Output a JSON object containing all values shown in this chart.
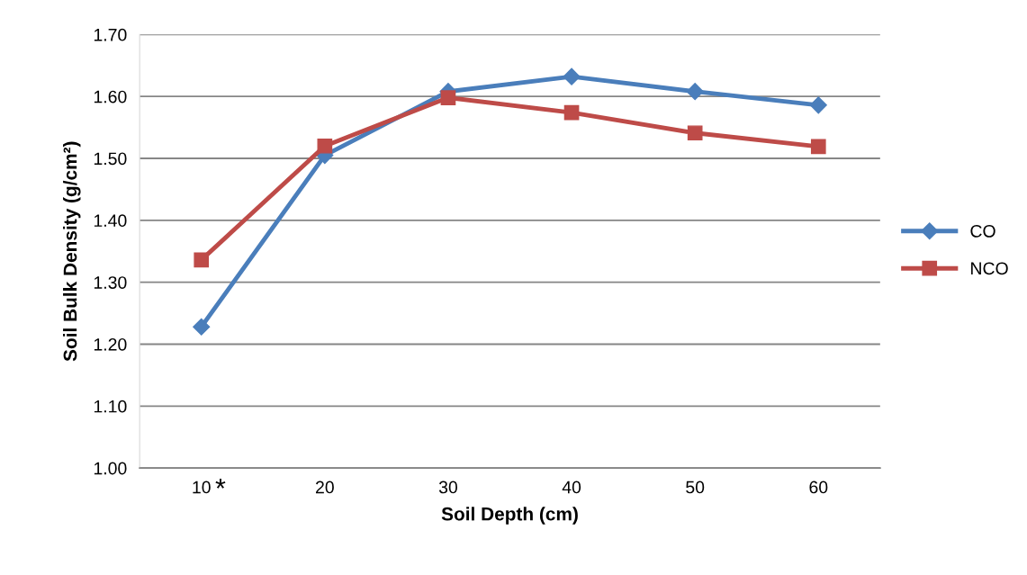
{
  "chart_data": {
    "type": "line",
    "xlabel": "Soil Depth (cm)",
    "ylabel": "Soil Bulk Density (g/cm²)",
    "categories": [
      "10",
      "20",
      "30",
      "40",
      "50",
      "60"
    ],
    "series": [
      {
        "name": "CO",
        "color": "#4a7ebb",
        "marker": "diamond",
        "values": [
          1.228,
          1.505,
          1.608,
          1.632,
          1.608,
          1.586
        ]
      },
      {
        "name": "NCO",
        "color": "#be4b48",
        "marker": "square",
        "values": [
          1.336,
          1.52,
          1.598,
          1.574,
          1.541,
          1.519
        ]
      }
    ],
    "ylim": [
      1.0,
      1.7
    ],
    "yticks": [
      {
        "value": 1.0,
        "label": "1.00"
      },
      {
        "value": 1.1,
        "label": "1.10"
      },
      {
        "value": 1.2,
        "label": "1.20"
      },
      {
        "value": 1.3,
        "label": "1.30"
      },
      {
        "value": 1.4,
        "label": "1.40"
      },
      {
        "value": 1.5,
        "label": "1.50"
      },
      {
        "value": 1.6,
        "label": "1.60"
      },
      {
        "value": 1.7,
        "label": "1.70"
      }
    ],
    "annotations": [
      "*"
    ],
    "grid": "y",
    "legend": "right",
    "line_style": "solid"
  }
}
